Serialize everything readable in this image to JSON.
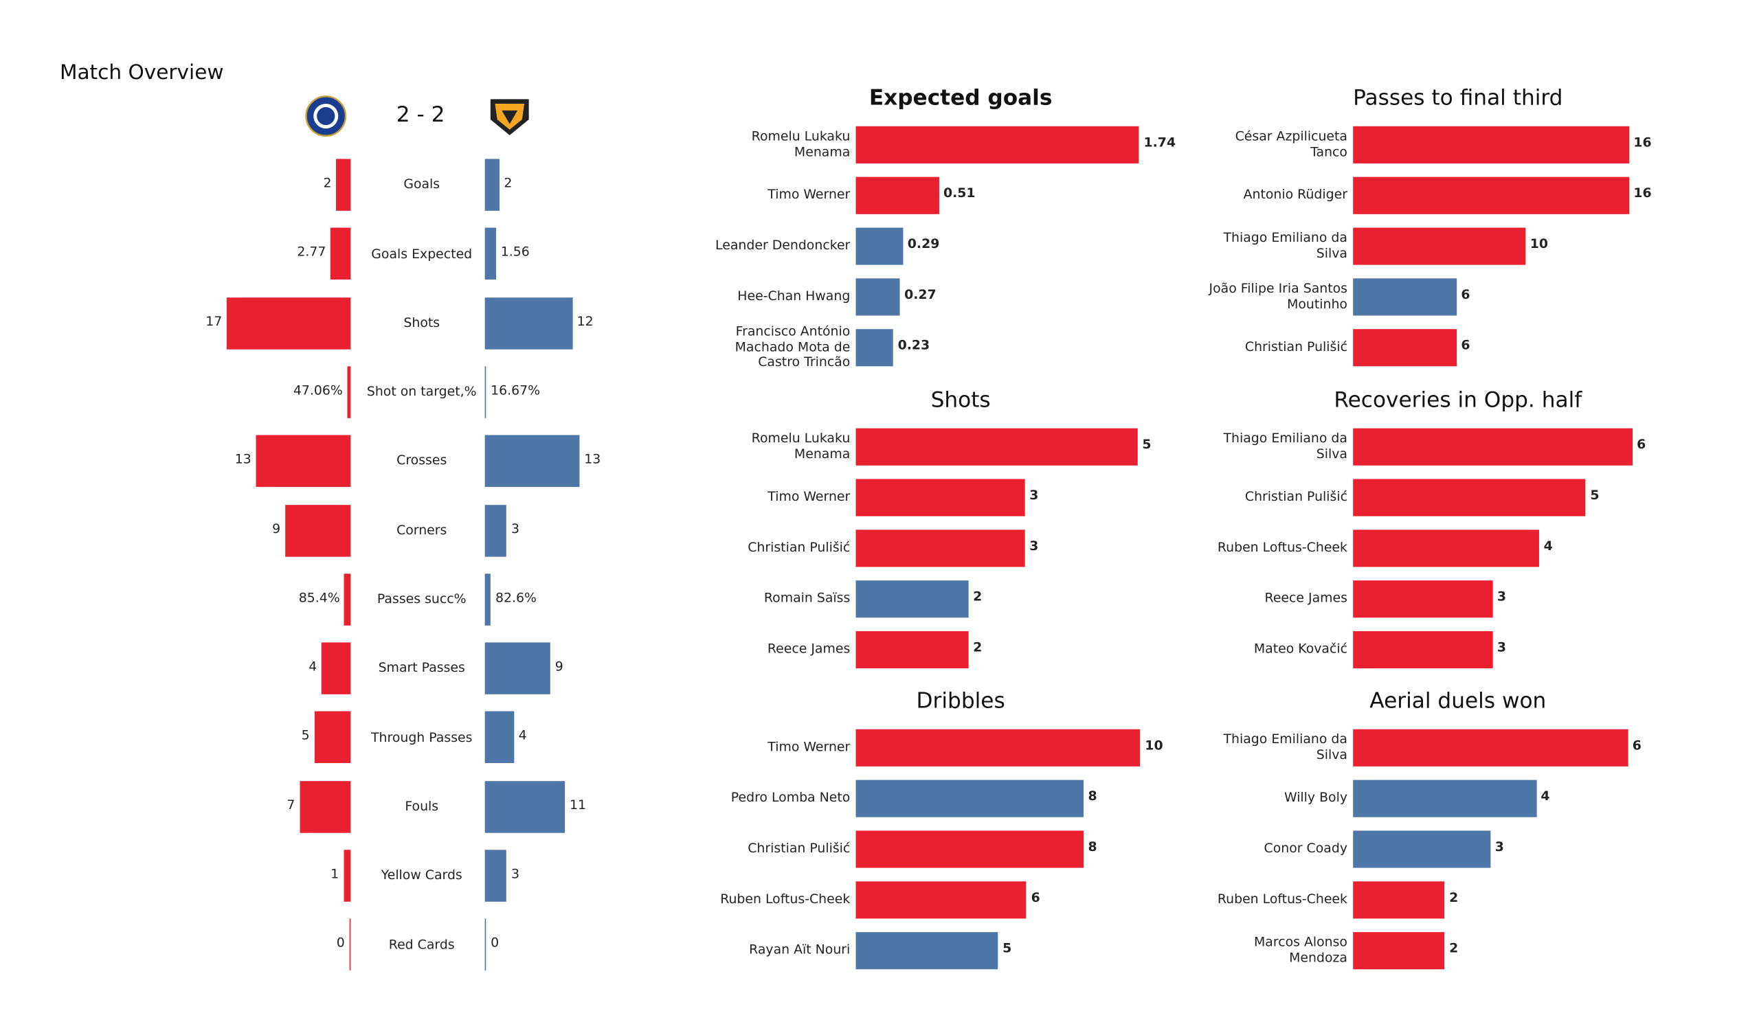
{
  "title": "Match Overview",
  "score": "2 - 2",
  "chart_data": [
    {
      "type": "butterfly",
      "xlim": [
        0,
        17
      ],
      "categories": [
        "Goals",
        "Goals Expected",
        "Shots",
        "Shot on target,%",
        "Crosses",
        "Corners",
        "Passes succ%",
        "Smart Passes",
        "Through Passes",
        "Fouls",
        "Yellow Cards",
        "Red Cards"
      ],
      "series": [
        {
          "color": "#e8202f",
          "values": [
            2,
            2.77,
            17,
            0.4706,
            13,
            9,
            0.854,
            4,
            5,
            7,
            1,
            0
          ],
          "value_labels": [
            "2",
            "2.77",
            "17",
            "47.06%",
            "13",
            "9",
            "85.4%",
            "4",
            "5",
            "7",
            "1",
            "0"
          ]
        },
        {
          "color": "#4e76a6",
          "values": [
            2,
            1.56,
            12,
            0.1667,
            13,
            3,
            0.826,
            9,
            4,
            11,
            3,
            0
          ],
          "value_labels": [
            "2",
            "1.56",
            "12",
            "16.67%",
            "13",
            "3",
            "82.6%",
            "9",
            "4",
            "11",
            "3",
            "0"
          ]
        }
      ]
    },
    {
      "type": "barh",
      "title": "Expected goals",
      "xlim": [
        0,
        1.8
      ],
      "categories": [
        "Romelu Lukaku Menama",
        "Timo Werner",
        "Leander Dendoncker",
        "Hee-Chan Hwang",
        "Francisco António Machado Mota de Castro Trincão"
      ],
      "values": [
        1.74,
        0.51,
        0.29,
        0.27,
        0.23
      ],
      "colors": [
        "#e8202f",
        "#e8202f",
        "#4e76a6",
        "#4e76a6",
        "#4e76a6"
      ]
    },
    {
      "type": "barh",
      "title": "Passes to final third",
      "xlim": [
        0,
        17
      ],
      "categories": [
        "César Azpilicueta Tanco",
        "Antonio Rüdiger",
        "Thiago Emiliano da Silva",
        "João Filipe Iria Santos Moutinho",
        "Christian Pulišić"
      ],
      "values": [
        16,
        16,
        10,
        6,
        6
      ],
      "colors": [
        "#e8202f",
        "#e8202f",
        "#e8202f",
        "#4e76a6",
        "#e8202f"
      ]
    },
    {
      "type": "barh",
      "title": "Shots",
      "xlim": [
        0,
        5.2
      ],
      "categories": [
        "Romelu Lukaku Menama",
        "Timo Werner",
        "Christian Pulišić",
        "Romain Saïss",
        "Reece James"
      ],
      "values": [
        5,
        3,
        3,
        2,
        2
      ],
      "colors": [
        "#e8202f",
        "#e8202f",
        "#e8202f",
        "#4e76a6",
        "#e8202f"
      ]
    },
    {
      "type": "barh",
      "title": "Recoveries in Opp. half",
      "xlim": [
        0,
        6.3
      ],
      "categories": [
        "Thiago Emiliano da Silva",
        "Christian Pulišić",
        "Ruben Loftus-Cheek",
        "Reece James",
        "Mateo Kovačić"
      ],
      "values": [
        6,
        5,
        4,
        3,
        3
      ],
      "colors": [
        "#e8202f",
        "#e8202f",
        "#e8202f",
        "#e8202f",
        "#e8202f"
      ]
    },
    {
      "type": "barh",
      "title": "Dribbles",
      "xlim": [
        0,
        10.3
      ],
      "categories": [
        "Timo Werner",
        "Pedro Lomba Neto",
        "Christian Pulišić",
        "Ruben Loftus-Cheek",
        "Rayan Aït Nouri"
      ],
      "values": [
        10,
        8,
        8,
        6,
        5
      ],
      "colors": [
        "#e8202f",
        "#4e76a6",
        "#e8202f",
        "#e8202f",
        "#4e76a6"
      ]
    },
    {
      "type": "barh",
      "title": "Aerial duels won",
      "xlim": [
        0,
        6.4
      ],
      "categories": [
        "Thiago Emiliano da Silva",
        "Willy Boly",
        "Conor  Coady",
        "Ruben Loftus-Cheek",
        "Marcos  Alonso Mendoza"
      ],
      "values": [
        6,
        4,
        3,
        2,
        2
      ],
      "colors": [
        "#e8202f",
        "#4e76a6",
        "#4e76a6",
        "#e8202f",
        "#e8202f"
      ]
    }
  ]
}
